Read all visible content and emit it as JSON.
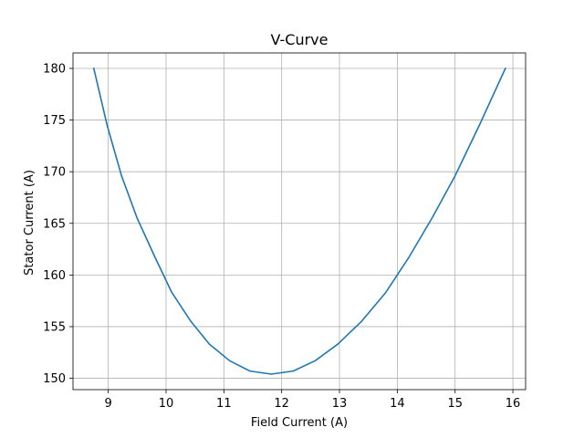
{
  "chart_data": {
    "type": "line",
    "title": "V-Curve",
    "xlabel": "Field Current (A)",
    "ylabel": "Stator Current (A)",
    "xlim": [
      8.39,
      16.22
    ],
    "ylim": [
      148.9,
      181.5
    ],
    "xticks": [
      9,
      10,
      11,
      12,
      13,
      14,
      15,
      16
    ],
    "yticks": [
      150,
      155,
      160,
      165,
      170,
      175,
      180
    ],
    "grid": true,
    "series": [
      {
        "color": "#1f77b4",
        "x": [
          8.75,
          8.98,
          9.23,
          9.5,
          9.81,
          10.1,
          10.43,
          10.75,
          11.1,
          11.45,
          11.82,
          12.2,
          12.58,
          12.97,
          13.38,
          13.8,
          14.2,
          14.6,
          15.0,
          15.42,
          15.87
        ],
        "y": [
          180.0,
          174.5,
          169.6,
          165.5,
          161.7,
          158.3,
          155.5,
          153.3,
          151.7,
          150.7,
          150.4,
          150.7,
          151.7,
          153.3,
          155.5,
          158.3,
          161.7,
          165.5,
          169.6,
          174.5,
          180.0
        ]
      }
    ]
  }
}
